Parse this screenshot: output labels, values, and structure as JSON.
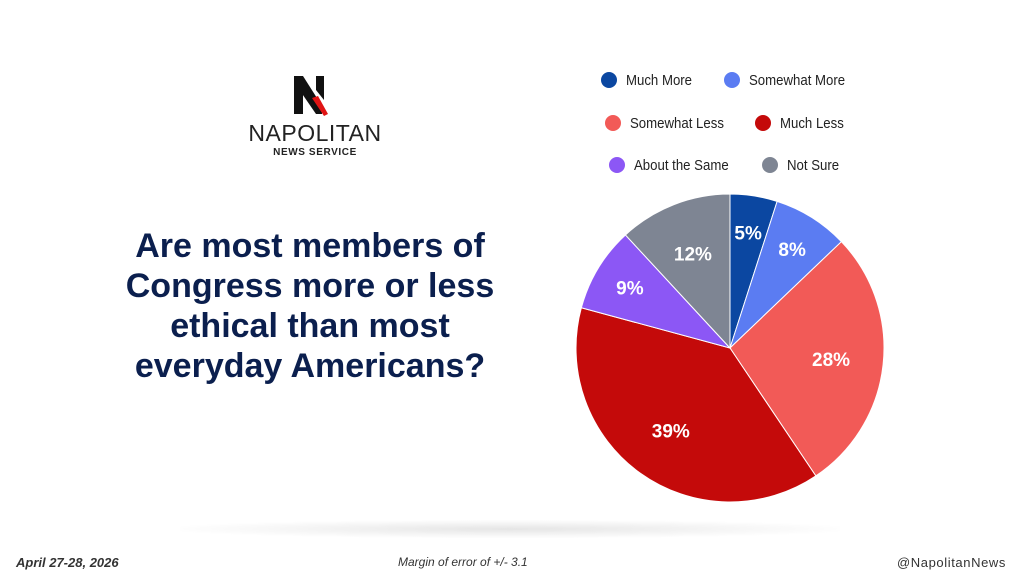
{
  "brand": {
    "name": "NAPOLITAN",
    "subtitle": "NEWS SERVICE",
    "logo_letter": "N"
  },
  "question": "Are most members of Congress more or less ethical than most everyday Americans?",
  "footer": {
    "date": "April 27-28, 2026",
    "margin": "Margin of error of +/- 3.1",
    "handle": "@NapolitanNews"
  },
  "chart_data": {
    "type": "pie",
    "title": "",
    "legend_placement": "top",
    "slices": [
      {
        "label": "Much More",
        "value": 5,
        "display": "5%",
        "color": "#0b47a1"
      },
      {
        "label": "Somewhat More",
        "value": 8,
        "display": "8%",
        "color": "#5b7cf2"
      },
      {
        "label": "Somewhat Less",
        "value": 28,
        "display": "28%",
        "color": "#f25a57"
      },
      {
        "label": "Much Less",
        "value": 39,
        "display": "39%",
        "color": "#c40a0a"
      },
      {
        "label": "About the Same",
        "value": 9,
        "display": "9%",
        "color": "#8c57f5"
      },
      {
        "label": "Not Sure",
        "value": 12,
        "display": "12%",
        "color": "#7e8593"
      }
    ]
  }
}
